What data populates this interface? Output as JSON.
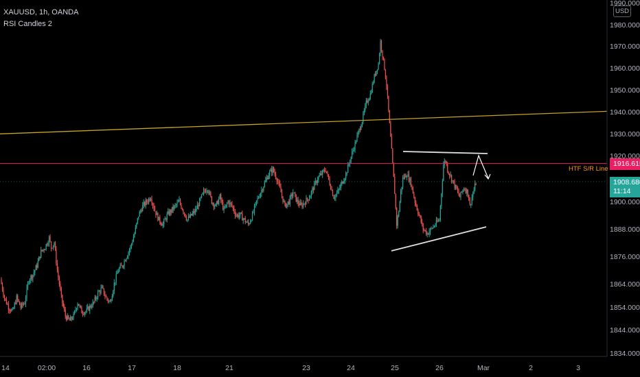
{
  "legend": {
    "symbol_line": "XAUUSD, 1h, OANDA",
    "indicator": "RSI Candles 2"
  },
  "currency_badge": "USD",
  "price_axis_labels": [
    "1990.000",
    "1980.000",
    "1970.000",
    "1960.000",
    "1950.000",
    "1940.000",
    "1930.000",
    "1920.000",
    "1900.000",
    "1888.000",
    "1876.000",
    "1864.000",
    "1854.000",
    "1844.000",
    "1834.000"
  ],
  "time_axis_labels": [
    "14",
    "02:00",
    "16",
    "17",
    "18",
    "21",
    "23",
    "24",
    "25",
    "26",
    "Mar",
    "2",
    "3"
  ],
  "sr_line_label": "HTF S/R Line",
  "sr_price_tag": "1916.615",
  "last_price_tag": {
    "price": "1908.680",
    "countdown": "11:14"
  },
  "colors": {
    "background": "#000000",
    "bull": "#26a69a",
    "bear": "#ef5350",
    "sr_line": "#e91e63",
    "trend_line": "#c9a227",
    "drawing": "#e0e0e0",
    "sr_label": "#ff9800"
  },
  "chart_data": {
    "type": "candlestick",
    "symbol": "XAUUSD",
    "timeframe": "1h",
    "ylim": [
      1834,
      1990
    ],
    "horizontal_levels": [
      {
        "label": "HTF S/R Line",
        "value": 1916.615
      }
    ],
    "last_price": 1908.68,
    "close_path": [
      [
        0,
        1866
      ],
      [
        4,
        1858
      ],
      [
        8,
        1854
      ],
      [
        12,
        1852
      ],
      [
        16,
        1858
      ],
      [
        20,
        1854
      ],
      [
        24,
        1856
      ],
      [
        28,
        1866
      ],
      [
        32,
        1868
      ],
      [
        36,
        1872
      ],
      [
        40,
        1878
      ],
      [
        44,
        1880
      ],
      [
        48,
        1884
      ],
      [
        50,
        1880
      ],
      [
        53,
        1882
      ],
      [
        56,
        1870
      ],
      [
        60,
        1858
      ],
      [
        64,
        1850
      ],
      [
        68,
        1848
      ],
      [
        72,
        1850
      ],
      [
        76,
        1856
      ],
      [
        80,
        1852
      ],
      [
        84,
        1852
      ],
      [
        88,
        1854
      ],
      [
        92,
        1856
      ],
      [
        96,
        1860
      ],
      [
        100,
        1862
      ],
      [
        104,
        1858
      ],
      [
        108,
        1856
      ],
      [
        112,
        1864
      ],
      [
        116,
        1870
      ],
      [
        120,
        1872
      ],
      [
        124,
        1876
      ],
      [
        128,
        1880
      ],
      [
        132,
        1886
      ],
      [
        136,
        1894
      ],
      [
        140,
        1898
      ],
      [
        144,
        1900
      ],
      [
        148,
        1902
      ],
      [
        152,
        1896
      ],
      [
        156,
        1892
      ],
      [
        160,
        1890
      ],
      [
        164,
        1894
      ],
      [
        168,
        1896
      ],
      [
        172,
        1898
      ],
      [
        176,
        1900
      ],
      [
        180,
        1896
      ],
      [
        184,
        1892
      ],
      [
        188,
        1894
      ],
      [
        192,
        1896
      ],
      [
        196,
        1900
      ],
      [
        200,
        1904
      ],
      [
        204,
        1906
      ],
      [
        208,
        1900
      ],
      [
        212,
        1898
      ],
      [
        216,
        1902
      ],
      [
        220,
        1896
      ],
      [
        224,
        1900
      ],
      [
        228,
        1898
      ],
      [
        232,
        1894
      ],
      [
        236,
        1894
      ],
      [
        240,
        1892
      ],
      [
        244,
        1890
      ],
      [
        248,
        1894
      ],
      [
        252,
        1900
      ],
      [
        256,
        1904
      ],
      [
        260,
        1908
      ],
      [
        264,
        1912
      ],
      [
        268,
        1914
      ],
      [
        272,
        1910
      ],
      [
        276,
        1904
      ],
      [
        280,
        1898
      ],
      [
        284,
        1900
      ],
      [
        288,
        1904
      ],
      [
        292,
        1900
      ],
      [
        296,
        1898
      ],
      [
        300,
        1900
      ],
      [
        304,
        1902
      ],
      [
        308,
        1906
      ],
      [
        312,
        1910
      ],
      [
        316,
        1912
      ],
      [
        320,
        1914
      ],
      [
        324,
        1908
      ],
      [
        328,
        1902
      ],
      [
        332,
        1904
      ],
      [
        336,
        1908
      ],
      [
        340,
        1912
      ],
      [
        344,
        1918
      ],
      [
        348,
        1924
      ],
      [
        352,
        1930
      ],
      [
        356,
        1936
      ],
      [
        360,
        1944
      ],
      [
        364,
        1948
      ],
      [
        368,
        1956
      ],
      [
        372,
        1962
      ],
      [
        374,
        1972
      ],
      [
        376,
        1966
      ],
      [
        378,
        1960
      ],
      [
        380,
        1952
      ],
      [
        382,
        1940
      ],
      [
        384,
        1928
      ],
      [
        386,
        1916
      ],
      [
        388,
        1904
      ],
      [
        390,
        1890
      ],
      [
        392,
        1896
      ],
      [
        394,
        1904
      ],
      [
        396,
        1910
      ],
      [
        400,
        1912
      ],
      [
        404,
        1908
      ],
      [
        408,
        1900
      ],
      [
        412,
        1894
      ],
      [
        416,
        1888
      ],
      [
        420,
        1886
      ],
      [
        424,
        1888
      ],
      [
        428,
        1890
      ],
      [
        432,
        1892
      ],
      [
        434,
        1904
      ],
      [
        436,
        1916
      ],
      [
        438,
        1918
      ],
      [
        440,
        1914
      ],
      [
        444,
        1910
      ],
      [
        448,
        1906
      ],
      [
        452,
        1902
      ],
      [
        456,
        1906
      ],
      [
        460,
        1904
      ],
      [
        462,
        1898
      ],
      [
        464,
        1902
      ],
      [
        468,
        1908
      ]
    ],
    "drawings": {
      "triangle_top": [
        [
          1916.6,
          1921.2
        ],
        [
          1916.6,
          1920.4
        ]
      ],
      "triangle_bottom": [
        1880.6,
        1889.8
      ],
      "trend_line": [
        1929.9,
        1940.2
      ]
    }
  }
}
